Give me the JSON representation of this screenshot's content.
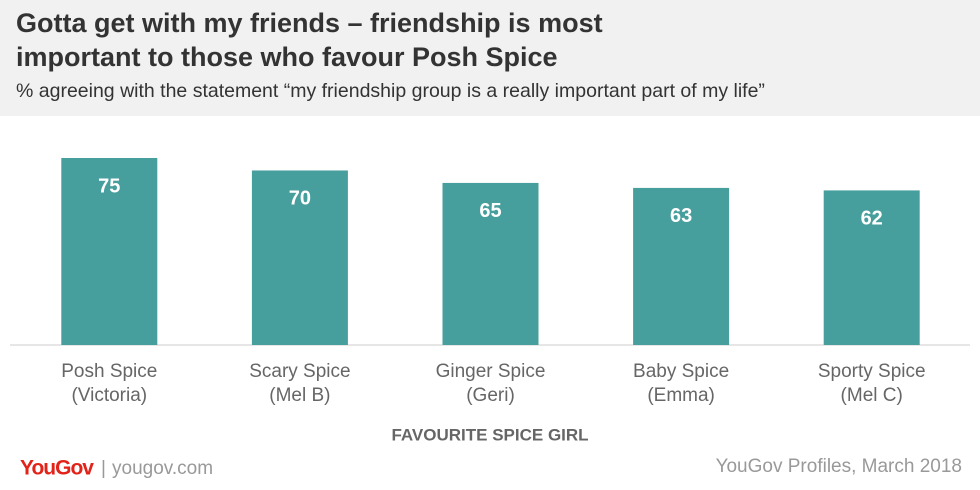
{
  "chart_data": {
    "type": "bar",
    "title": "Gotta get with my friends – friendship is most important to those who favour Posh Spice",
    "subtitle": "% agreeing with the statement “my friendship group is a really important part of my life”",
    "categories": [
      [
        "Posh Spice",
        "(Victoria)"
      ],
      [
        "Scary Spice",
        "(Mel B)"
      ],
      [
        "Ginger Spice",
        "(Geri)"
      ],
      [
        "Baby Spice",
        "(Emma)"
      ],
      [
        "Sporty Spice",
        "(Mel C)"
      ]
    ],
    "values": [
      75,
      70,
      65,
      63,
      62
    ],
    "color": "#469e9d",
    "x_label": "FAVOURITE SPICE GIRL",
    "data_labels": true
  },
  "footer": {
    "logo": "YouGov",
    "site": "yougov.com",
    "source": "YouGov Profiles, March 2018"
  }
}
